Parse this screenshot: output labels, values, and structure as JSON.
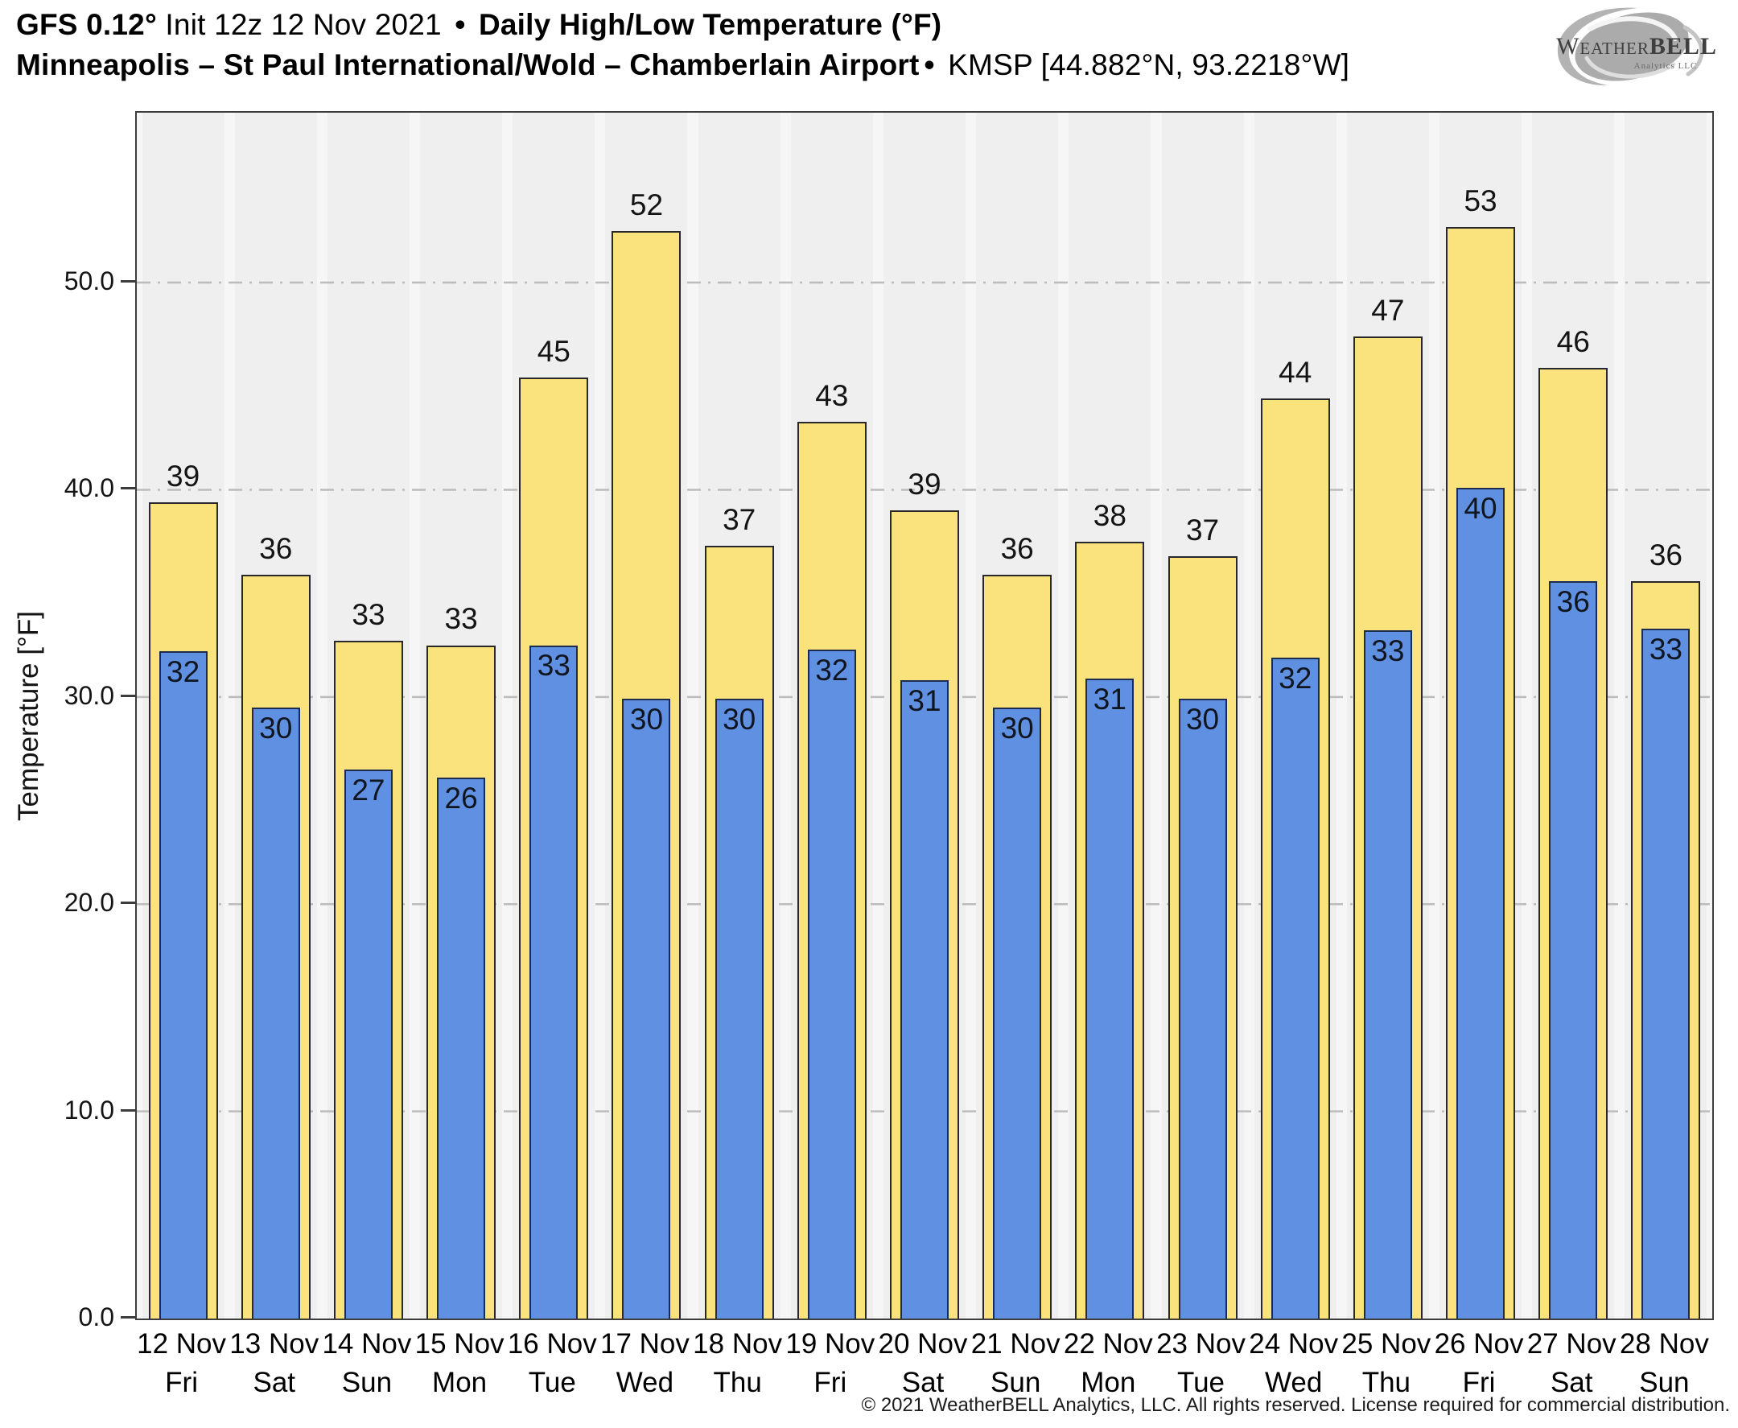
{
  "header": {
    "model": "GFS 0.12°",
    "init": " Init 12z 12 Nov 2021 ",
    "sep1": "•",
    "product": " Daily High/Low Temperature (°F)",
    "station": "Minneapolis – St Paul International/Wold – Chamberlain Airport",
    "sep2": "•",
    "station_id": " KMSP [44.882°N, 93.2218°W]"
  },
  "logo": {
    "brand_weather": "Weather",
    "brand_bell": "BELL",
    "subtext": "Analytics LLC"
  },
  "footer": {
    "copyright": "© 2021 WeatherBELL Analytics, LLC. All rights reserved. License required for commercial distribution."
  },
  "chart_data": {
    "type": "bar",
    "title": "GFS 0.12° Init 12z 12 Nov 2021 • Daily High/Low Temperature (°F)",
    "subtitle": "Minneapolis – St Paul International/Wold – Chamberlain Airport • KMSP [44.882°N, 93.2218°W]",
    "ylabel": "Temperature [°F]",
    "ylim": [
      0,
      58.2
    ],
    "yticks": {
      "values": [
        0,
        10,
        20,
        30,
        40,
        50
      ],
      "labels": [
        "0.0",
        "10.0",
        "20.0",
        "30.0",
        "40.0",
        "50.0"
      ]
    },
    "grid": "horizontal dash-dot gridlines at 10,20,30,40,50",
    "legend": "none",
    "categories": [
      "12 Nov",
      "13 Nov",
      "14 Nov",
      "15 Nov",
      "16 Nov",
      "17 Nov",
      "18 Nov",
      "19 Nov",
      "20 Nov",
      "21 Nov",
      "22 Nov",
      "23 Nov",
      "24 Nov",
      "25 Nov",
      "26 Nov",
      "27 Nov",
      "28 Nov"
    ],
    "day_names": [
      "Fri",
      "Sat",
      "Sun",
      "Mon",
      "Tue",
      "Wed",
      "Thu",
      "Fri",
      "Sat",
      "Sun",
      "Mon",
      "Tue",
      "Wed",
      "Thu",
      "Fri",
      "Sat",
      "Sun"
    ],
    "series": [
      {
        "name": "Daily High",
        "color": "#fae27c",
        "labels": [
          39,
          36,
          33,
          33,
          45,
          52,
          37,
          43,
          39,
          36,
          38,
          37,
          44,
          47,
          53,
          46,
          36
        ],
        "values": [
          39.4,
          35.9,
          32.7,
          32.5,
          45.4,
          52.5,
          37.3,
          43.3,
          39.0,
          35.9,
          37.5,
          36.8,
          44.4,
          47.4,
          52.7,
          45.9,
          35.6
        ]
      },
      {
        "name": "Daily Low",
        "color": "#6090e2",
        "labels": [
          32,
          30,
          27,
          26,
          33,
          30,
          30,
          32,
          31,
          30,
          31,
          30,
          32,
          33,
          40,
          36,
          33
        ],
        "values": [
          32.2,
          29.5,
          26.5,
          26.1,
          32.5,
          29.9,
          29.9,
          32.3,
          30.8,
          29.5,
          30.9,
          29.9,
          31.9,
          33.2,
          40.1,
          35.6,
          33.3
        ]
      }
    ]
  },
  "colors": {
    "high_fill": "#fae27c",
    "low_fill": "#6090e2",
    "plot_bg": "#f6f6f6",
    "day_band": "#f0eff0",
    "gridline": "#bcbcbc",
    "axis": "#3d3d3d",
    "text": "#141414"
  }
}
